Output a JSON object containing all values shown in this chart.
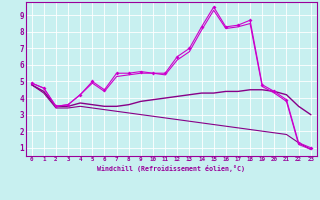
{
  "xlabel": "Windchill (Refroidissement éolien,°C)",
  "bg_color": "#c8f0f0",
  "grid_color": "#ffffff",
  "line_color": "#cc00cc",
  "line_color2": "#880088",
  "xlim": [
    -0.5,
    23.5
  ],
  "ylim": [
    0.5,
    9.8
  ],
  "ytick_vals": [
    1,
    2,
    3,
    4,
    5,
    6,
    7,
    8,
    9
  ],
  "xtick_labels": [
    "0",
    "1",
    "2",
    "3",
    "4",
    "5",
    "6",
    "7",
    "8",
    "9",
    "10",
    "11",
    "12",
    "13",
    "14",
    "15",
    "16",
    "17",
    "18",
    "19",
    "20",
    "21",
    "22",
    "23"
  ],
  "line1_x": [
    0,
    1,
    2,
    3,
    4,
    5,
    6,
    7,
    8,
    9,
    10,
    11,
    12,
    13,
    14,
    15,
    16,
    17,
    18,
    19,
    20,
    21,
    22,
    23
  ],
  "line1_y": [
    4.9,
    4.6,
    3.5,
    3.6,
    4.2,
    5.0,
    4.5,
    5.5,
    5.5,
    5.6,
    5.5,
    5.5,
    6.5,
    7.0,
    8.3,
    9.5,
    8.3,
    8.4,
    8.7,
    4.8,
    4.4,
    3.9,
    1.3,
    1.0
  ],
  "line2_x": [
    0,
    1,
    2,
    3,
    4,
    5,
    6,
    7,
    8,
    9,
    10,
    11,
    12,
    13,
    14,
    15,
    16,
    17,
    18,
    19,
    20,
    21,
    22,
    23
  ],
  "line2_y": [
    4.9,
    4.6,
    3.5,
    3.6,
    4.2,
    4.9,
    4.4,
    5.3,
    5.4,
    5.5,
    5.5,
    5.4,
    6.3,
    6.8,
    8.1,
    9.3,
    8.2,
    8.3,
    8.5,
    4.7,
    4.3,
    3.8,
    1.2,
    0.9
  ],
  "line3_x": [
    0,
    1,
    2,
    3,
    4,
    5,
    6,
    7,
    8,
    9,
    10,
    11,
    12,
    13,
    14,
    15,
    16,
    17,
    18,
    19,
    20,
    21,
    22,
    23
  ],
  "line3_y": [
    4.8,
    4.4,
    3.5,
    3.5,
    3.7,
    3.6,
    3.5,
    3.5,
    3.6,
    3.8,
    3.9,
    4.0,
    4.1,
    4.2,
    4.3,
    4.3,
    4.4,
    4.4,
    4.5,
    4.5,
    4.4,
    4.2,
    3.5,
    3.0
  ],
  "line4_x": [
    0,
    1,
    2,
    3,
    4,
    5,
    6,
    7,
    8,
    9,
    10,
    11,
    12,
    13,
    14,
    15,
    16,
    17,
    18,
    19,
    20,
    21,
    22,
    23
  ],
  "line4_y": [
    4.8,
    4.3,
    3.4,
    3.4,
    3.5,
    3.4,
    3.3,
    3.2,
    3.1,
    3.0,
    2.9,
    2.8,
    2.7,
    2.6,
    2.5,
    2.4,
    2.3,
    2.2,
    2.1,
    2.0,
    1.9,
    1.8,
    1.3,
    0.9
  ]
}
